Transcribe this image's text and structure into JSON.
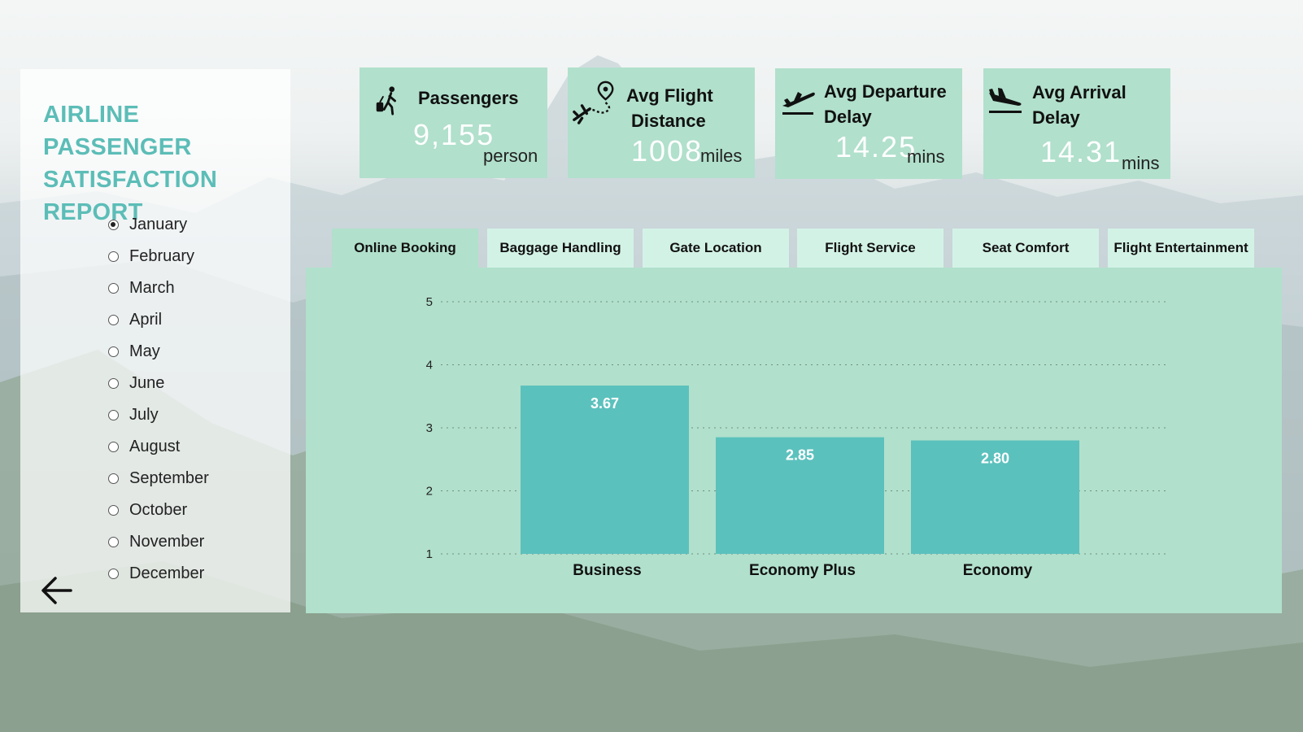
{
  "report_title": "AIRLINE PASSENGER SATISFACTION REPORT",
  "months": [
    {
      "label": "January",
      "selected": true
    },
    {
      "label": "February",
      "selected": false
    },
    {
      "label": "March",
      "selected": false
    },
    {
      "label": "April",
      "selected": false
    },
    {
      "label": "May",
      "selected": false
    },
    {
      "label": "June",
      "selected": false
    },
    {
      "label": "July",
      "selected": false
    },
    {
      "label": "August",
      "selected": false
    },
    {
      "label": "September",
      "selected": false
    },
    {
      "label": "October",
      "selected": false
    },
    {
      "label": "November",
      "selected": false
    },
    {
      "label": "December",
      "selected": false
    }
  ],
  "kpis": {
    "passengers": {
      "title": "Passengers",
      "value": "9,155",
      "unit": "person",
      "icon": "traveler-luggage-icon"
    },
    "distance": {
      "title_line1": "Avg Flight",
      "title_line2": "Distance",
      "value": "1008",
      "unit": "miles",
      "icon": "plane-route-pin-icon"
    },
    "departure": {
      "title_line1": "Avg Departure",
      "title_line2": "Delay",
      "value": "14.25",
      "unit": "mins",
      "icon": "plane-takeoff-icon"
    },
    "arrival": {
      "title_line1": "Avg Arrival",
      "title_line2": "Delay",
      "value": "14.31",
      "unit": "mins",
      "icon": "plane-landing-icon"
    }
  },
  "tabs": [
    {
      "label": "Online Booking",
      "active": true
    },
    {
      "label": "Baggage Handling",
      "active": false
    },
    {
      "label": "Gate Location",
      "active": false
    },
    {
      "label": "Flight Service",
      "active": false
    },
    {
      "label": "Seat Comfort",
      "active": false
    },
    {
      "label": "Flight Entertainment",
      "active": false
    }
  ],
  "colors": {
    "accent": "#5cbdb7",
    "card": "#b1e0cc",
    "bar": "#5bc1bd",
    "tab_inactive": "#d3f2e6"
  },
  "chart_data": {
    "type": "bar",
    "categories": [
      "Business",
      "Economy Plus",
      "Economy"
    ],
    "values": [
      3.67,
      2.85,
      2.8
    ],
    "data_labels": [
      "3.67",
      "2.85",
      "2.80"
    ],
    "yticks": [
      "1",
      "2",
      "3",
      "4",
      "5"
    ],
    "ylim": [
      1,
      5
    ],
    "grid": true,
    "title": "",
    "xlabel": "",
    "ylabel": ""
  }
}
